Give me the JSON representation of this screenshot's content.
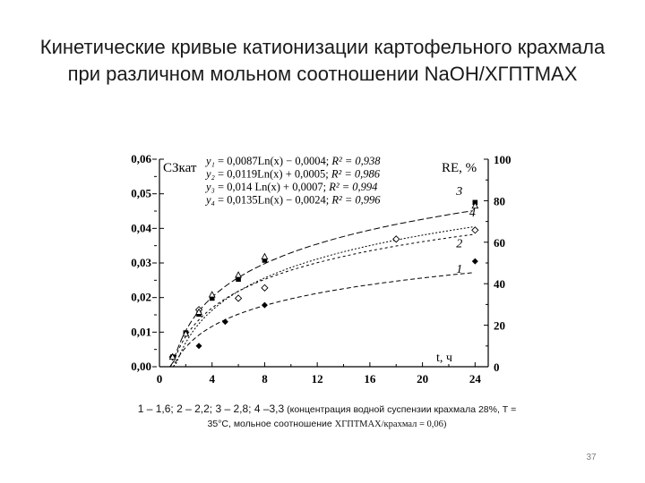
{
  "slide": {
    "title_line1": "Кинетические кривые катионизации картофельного крахмала",
    "title_line2": "при различном мольном соотношении NaOH/ХГПТМАХ",
    "caption_lead": "1 – 1,6; 2 – 2,2; 3 – 2,8; 4 –3,3",
    "caption_paren": "(концентрация водной суспензии крахмала 28%, Т =",
    "caption_line2a": "35°С, мольное соотношение ",
    "caption_line2b": "ХГПТМАХ/крахмал = 0,06)",
    "page_number": "37"
  },
  "chart_data": {
    "type": "line",
    "xlabel": "t, ч",
    "ylabel_left": "СЗкат",
    "ylabel_right": "RE, %",
    "x_ticks": [
      "0",
      "4",
      "8",
      "12",
      "16",
      "20",
      "24"
    ],
    "x_tick_values": [
      0,
      4,
      8,
      12,
      16,
      20,
      24
    ],
    "xlim": [
      0,
      25
    ],
    "y_left_ticks": [
      "0,00",
      "0,01",
      "0,02",
      "0,03",
      "0,04",
      "0,05",
      "0,06"
    ],
    "y_left_tick_values": [
      0,
      0.01,
      0.02,
      0.03,
      0.04,
      0.05,
      0.06
    ],
    "y_left_lim": [
      0,
      0.06
    ],
    "y_right_ticks": [
      "0",
      "20",
      "40",
      "60",
      "80",
      "100"
    ],
    "y_right_tick_values": [
      0,
      20,
      40,
      60,
      80,
      100
    ],
    "equations": [
      {
        "y": "y₁",
        "text": " = 0,0087Ln(x) − 0,0004; ",
        "r2": "R² = 0,938"
      },
      {
        "y": "y₂",
        "text": " = 0,0119Ln(x) + 0,0005; ",
        "r2": "R² = 0,986"
      },
      {
        "y": "y₃",
        "text": " = 0,014 Ln(x) + 0,0007; ",
        "r2": "R² = 0,994"
      },
      {
        "y": "y₄",
        "text": " = 0,0135Ln(x) − 0,0024; ",
        "r2": "R² = 0,996"
      }
    ],
    "series": [
      {
        "name": "1",
        "marker": "diamond",
        "x": [
          1,
          3,
          5,
          8,
          24
        ],
        "y": [
          0.0028,
          0.006,
          0.013,
          0.0178,
          0.0305
        ],
        "fit": {
          "a": 0.0087,
          "b": -0.0004
        }
      },
      {
        "name": "2",
        "marker": "diamond-open",
        "x": [
          1,
          3,
          6,
          8,
          18,
          24
        ],
        "y": [
          0.0028,
          0.0165,
          0.0198,
          0.0228,
          0.0369,
          0.0395
        ],
        "fit": {
          "a": 0.0119,
          "b": 0.0005
        }
      },
      {
        "name": "3",
        "marker": "square",
        "x": [
          1,
          2,
          3,
          4,
          6,
          8,
          24
        ],
        "y": [
          0.0028,
          0.0098,
          0.0152,
          0.0198,
          0.0253,
          0.0308,
          0.0475
        ],
        "fit": {
          "a": 0.014,
          "b": 0.0007
        }
      },
      {
        "name": "4",
        "marker": "triangle",
        "x": [
          1,
          2,
          3,
          4,
          6,
          8,
          24
        ],
        "y": [
          0.0028,
          0.0095,
          0.0158,
          0.0208,
          0.0265,
          0.0318,
          0.0465
        ],
        "fit": {
          "a": 0.0135,
          "b": -0.0024
        }
      }
    ],
    "grid": false
  }
}
